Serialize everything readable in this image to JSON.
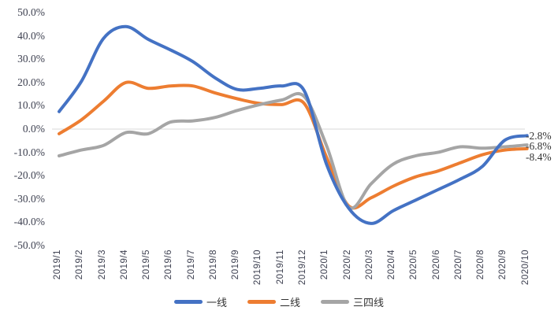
{
  "chart_data": {
    "type": "line",
    "title": "",
    "smoothed": true,
    "grid": "zero-line-only",
    "categories": [
      "2019/1",
      "2019/2",
      "2019/3",
      "2019/4",
      "2019/5",
      "2019/6",
      "2019/7",
      "2019/8",
      "2019/9",
      "2019/10",
      "2019/11",
      "2019/12",
      "2020/1",
      "2020/2",
      "2020/3",
      "2020/4",
      "2020/5",
      "2020/6",
      "2020/7",
      "2020/8",
      "2020/9",
      "2020/10"
    ],
    "series": [
      {
        "name": "一线",
        "color": "#4472C4",
        "end_label": "-2.8%",
        "values": [
          7.5,
          20.5,
          39,
          44,
          38.5,
          34,
          29,
          22,
          17,
          17.5,
          18.5,
          16.5,
          -15,
          -34,
          -40.5,
          -35,
          -30.5,
          -26,
          -21.5,
          -16,
          -4.8,
          -2.8
        ]
      },
      {
        "name": "二线",
        "color": "#ED7D31",
        "end_label": "-8.4%",
        "values": [
          -2,
          4,
          12,
          20,
          17.5,
          18.5,
          18.5,
          15.5,
          13,
          11,
          10.5,
          11,
          -12,
          -33,
          -29.5,
          -24.5,
          -20.5,
          -18,
          -14.5,
          -11,
          -9,
          -8.4
        ]
      },
      {
        "name": "三四线",
        "color": "#A5A5A5",
        "end_label": "-6.8%",
        "values": [
          -11.5,
          -9,
          -7,
          -1.5,
          -2,
          3,
          3.5,
          5,
          8,
          10.5,
          12.5,
          14,
          -7,
          -33.5,
          -23.5,
          -15,
          -11.5,
          -10,
          -7.6,
          -8.2,
          -7.6,
          -6.8
        ]
      }
    ],
    "y_axis": {
      "min": -50,
      "max": 50,
      "tick_values": [
        50,
        40,
        30,
        20,
        10,
        0,
        -10,
        -20,
        -30,
        -40,
        -50
      ],
      "tick_labels": [
        "50.0%",
        "40.0%",
        "30.0%",
        "20.0%",
        "10.0%",
        "0.0%",
        "-10.0%",
        "-20.0%",
        "-30.0%",
        "-40.0%",
        "-50.0%"
      ]
    },
    "x_axis": {
      "label_rotation_deg": 90
    },
    "legend": {
      "position": "bottom",
      "items": [
        "一线",
        "二线",
        "三四线"
      ]
    }
  },
  "colors": {
    "background": "#ffffff",
    "axis_text": "#3e4151",
    "data_label_text": "#333333",
    "zero_line": "#d9d9d9"
  }
}
